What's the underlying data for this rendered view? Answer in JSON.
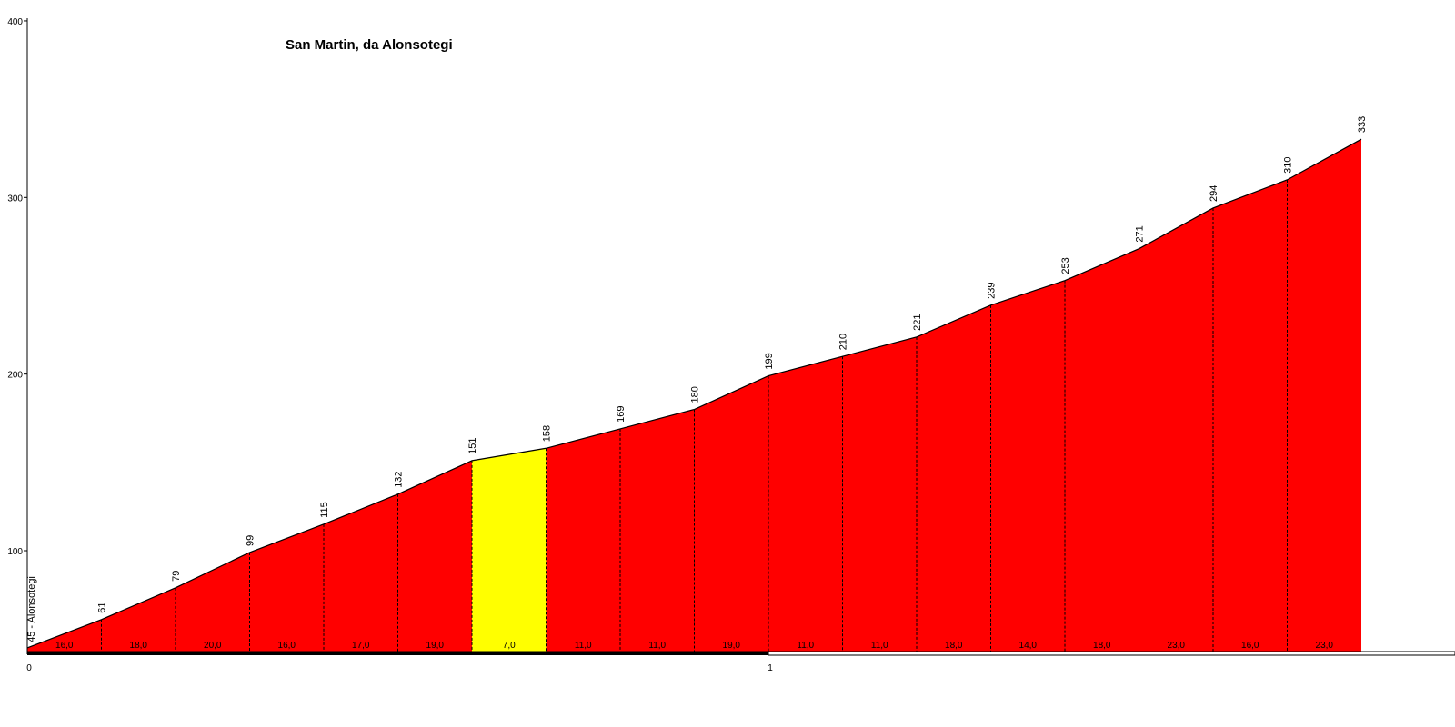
{
  "chart_data": {
    "type": "area",
    "title": "San Martin, da Alonsotegi",
    "xlabel": "",
    "ylabel": "",
    "ylim": [
      40,
      400
    ],
    "xlim": [
      0,
      1.9
    ],
    "y_ticks": [
      100,
      200,
      300,
      400
    ],
    "x_ticks": [
      0,
      1
    ],
    "tick_labels_y": [
      "100",
      "200",
      "300",
      "400"
    ],
    "tick_labels_x": [
      "0",
      "1"
    ],
    "step_km": 0.1,
    "start_label": "45 - Alonsotegi",
    "elevations": [
      45,
      61,
      79,
      99,
      115,
      132,
      151,
      158,
      169,
      180,
      199,
      210,
      221,
      239,
      253,
      271,
      294,
      310,
      333
    ],
    "elevation_labels": [
      "61",
      "79",
      "99",
      "115",
      "132",
      "151",
      "158",
      "169",
      "180",
      "199",
      "210",
      "221",
      "239",
      "253",
      "271",
      "294",
      "310",
      "333"
    ],
    "gradients": [
      "16,0",
      "18,0",
      "20,0",
      "16,0",
      "17,0",
      "19,0",
      "7,0",
      "11,0",
      "11,0",
      "19,0",
      "11,0",
      "11,0",
      "18,0",
      "14,0",
      "18,0",
      "23,0",
      "16,0",
      "23,0"
    ],
    "colors": {
      "steep": "#ff0000",
      "moderate": "#ffff00",
      "outline": "#000000",
      "axis": "#000000",
      "km_bar_filled": "#000000",
      "km_bar_empty": "#ffffff"
    },
    "grid": false
  }
}
